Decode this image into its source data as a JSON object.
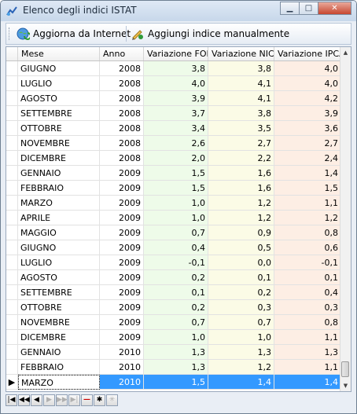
{
  "window": {
    "title": "Elenco degli indici ISTAT"
  },
  "toolbar": {
    "update_label": "Aggiorna da Internet",
    "add_label": "Aggiungi indice manualmente"
  },
  "grid": {
    "columns": [
      "Mese",
      "Anno",
      "Variazione FOI",
      "Variazione NIC -",
      "Variazione IPCA"
    ],
    "rows": [
      [
        "GIUGNO",
        "2008",
        "3,8",
        "3,8",
        "4,0"
      ],
      [
        "LUGLIO",
        "2008",
        "4,0",
        "4,1",
        "4,0"
      ],
      [
        "AGOSTO",
        "2008",
        "3,9",
        "4,1",
        "4,2"
      ],
      [
        "SETTEMBRE",
        "2008",
        "3,7",
        "3,8",
        "3,9"
      ],
      [
        "OTTOBRE",
        "2008",
        "3,4",
        "3,5",
        "3,6"
      ],
      [
        "NOVEMBRE",
        "2008",
        "2,6",
        "2,7",
        "2,7"
      ],
      [
        "DICEMBRE",
        "2008",
        "2,0",
        "2,2",
        "2,4"
      ],
      [
        "GENNAIO",
        "2009",
        "1,5",
        "1,6",
        "1,4"
      ],
      [
        "FEBBRAIO",
        "2009",
        "1,5",
        "1,6",
        "1,5"
      ],
      [
        "MARZO",
        "2009",
        "1,0",
        "1,2",
        "1,1"
      ],
      [
        "APRILE",
        "2009",
        "1,0",
        "1,2",
        "1,2"
      ],
      [
        "MAGGIO",
        "2009",
        "0,7",
        "0,9",
        "0,8"
      ],
      [
        "GIUGNO",
        "2009",
        "0,4",
        "0,5",
        "0,6"
      ],
      [
        "LUGLIO",
        "2009",
        "-0,1",
        "0,0",
        "-0,1"
      ],
      [
        "AGOSTO",
        "2009",
        "0,2",
        "0,1",
        "0,1"
      ],
      [
        "SETTEMBRE",
        "2009",
        "0,1",
        "0,2",
        "0,4"
      ],
      [
        "OTTOBRE",
        "2009",
        "0,2",
        "0,3",
        "0,3"
      ],
      [
        "NOVEMBRE",
        "2009",
        "0,7",
        "0,7",
        "0,8"
      ],
      [
        "DICEMBRE",
        "2009",
        "1,0",
        "1,0",
        "1,1"
      ],
      [
        "GENNAIO",
        "2010",
        "1,3",
        "1,3",
        "1,3"
      ],
      [
        "FEBBRAIO",
        "2010",
        "1,3",
        "1,2",
        "1,1"
      ],
      [
        "MARZO",
        "2010",
        "1,5",
        "1,4",
        "1,4"
      ]
    ],
    "selected_row": 21,
    "row_indicator": "▶"
  },
  "navigator": {
    "buttons": [
      {
        "name": "first-record-button",
        "glyph": "|◀",
        "enabled": true
      },
      {
        "name": "prior-page-button",
        "glyph": "◀◀",
        "enabled": true
      },
      {
        "name": "prior-record-button",
        "glyph": "◀",
        "enabled": true
      },
      {
        "name": "next-record-button",
        "glyph": "▶",
        "enabled": false
      },
      {
        "name": "next-page-button",
        "glyph": "▶▶",
        "enabled": false
      },
      {
        "name": "last-record-button",
        "glyph": "▶|",
        "enabled": false
      },
      {
        "name": "delete-record-button",
        "glyph": "—",
        "enabled": true
      },
      {
        "name": "refresh-button",
        "glyph": "✱",
        "enabled": true
      },
      {
        "name": "cancel-button",
        "glyph": "✳",
        "enabled": false
      }
    ]
  },
  "colors": {
    "selection": "#3399ff",
    "foi_bg": "#eefbe9",
    "nic_bg": "#fbfbe6",
    "ipca_bg": "#fdeee4"
  }
}
